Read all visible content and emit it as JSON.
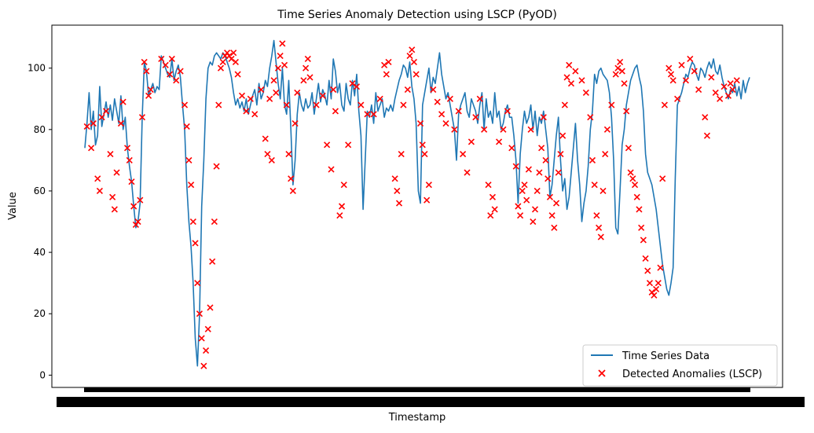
{
  "chart_data": {
    "type": "line",
    "title": "Time Series Anomaly Detection using LSCP (PyOD)",
    "xlabel": "Timestamp",
    "ylabel": "Value",
    "ylim": [
      -4,
      114
    ],
    "yticks": [
      0,
      20,
      40,
      60,
      80,
      100
    ],
    "grid": false,
    "legend_position": "lower-right",
    "colors": {
      "series": "#1f77b4",
      "anomalies": "#ff0000"
    },
    "series": [
      {
        "name": "Time Series Data",
        "values": [
          74,
          82,
          92,
          80,
          86,
          75,
          78,
          94,
          81,
          85,
          89,
          84,
          88,
          83,
          90,
          86,
          82,
          91,
          80,
          84,
          74,
          68,
          63,
          55,
          48,
          50,
          56,
          84,
          102,
          99,
          91,
          93,
          95,
          92,
          94,
          93,
          104,
          102,
          100,
          98,
          97,
          103,
          96,
          99,
          101,
          97,
          88,
          80,
          62,
          50,
          42,
          30,
          12,
          3,
          20,
          55,
          70,
          90,
          100,
          102,
          101,
          104,
          105,
          104,
          103,
          105,
          104,
          102,
          100,
          97,
          92,
          88,
          90,
          87,
          89,
          86,
          90,
          85,
          88,
          91,
          93,
          88,
          95,
          90,
          92,
          96,
          94,
          100,
          104,
          109,
          102,
          95,
          90,
          100,
          88,
          85,
          96,
          80,
          62,
          70,
          85,
          92,
          88,
          86,
          90,
          87,
          88,
          92,
          85,
          90,
          95,
          89,
          93,
          91,
          88,
          96,
          90,
          103,
          99,
          92,
          95,
          88,
          86,
          95,
          90,
          88,
          96,
          91,
          98,
          86,
          78,
          54,
          70,
          86,
          84,
          88,
          82,
          92,
          86,
          88,
          90,
          84,
          87,
          86,
          88,
          86,
          90,
          93,
          96,
          98,
          101,
          100,
          97,
          102,
          94,
          90,
          82,
          60,
          56,
          88,
          92,
          96,
          100,
          92,
          97,
          95,
          100,
          105,
          98,
          94,
          90,
          92,
          88,
          84,
          80,
          70,
          85,
          88,
          90,
          92,
          86,
          84,
          90,
          88,
          86,
          82,
          88,
          92,
          80,
          90,
          84,
          86,
          82,
          92,
          84,
          86,
          80,
          82,
          86,
          88,
          84,
          84,
          78,
          70,
          56,
          72,
          80,
          86,
          82,
          84,
          88,
          80,
          86,
          78,
          84,
          82,
          86,
          80,
          74,
          58,
          62,
          70,
          78,
          84,
          70,
          60,
          64,
          54,
          58,
          66,
          74,
          82,
          70,
          62,
          50,
          56,
          60,
          68,
          80,
          86,
          98,
          95,
          99,
          100,
          98,
          97,
          96,
          92,
          84,
          70,
          48,
          46,
          60,
          75,
          80,
          88,
          92,
          96,
          98,
          100,
          101,
          97,
          94,
          86,
          72,
          66,
          64,
          62,
          58,
          54,
          48,
          42,
          36,
          32,
          28,
          26,
          30,
          35,
          64,
          88,
          90,
          92,
          95,
          98,
          97,
          100,
          102,
          101,
          98,
          96,
          100,
          99,
          97,
          100,
          102,
          100,
          103,
          99,
          98,
          101,
          97,
          94,
          92,
          90,
          93,
          92,
          95,
          91,
          94,
          90,
          96,
          92,
          95,
          97
        ]
      }
    ],
    "anomalies": {
      "name": "Detected Anomalies (LSCP)",
      "points": [
        [
          1,
          81
        ],
        [
          3,
          74
        ],
        [
          4,
          82
        ],
        [
          6,
          64
        ],
        [
          7,
          60
        ],
        [
          8,
          84
        ],
        [
          10,
          86
        ],
        [
          12,
          72
        ],
        [
          13,
          58
        ],
        [
          14,
          54
        ],
        [
          15,
          66
        ],
        [
          17,
          82
        ],
        [
          18,
          89
        ],
        [
          20,
          74
        ],
        [
          21,
          70
        ],
        [
          22,
          63
        ],
        [
          23,
          55
        ],
        [
          24,
          49
        ],
        [
          25,
          50
        ],
        [
          26,
          57
        ],
        [
          27,
          84
        ],
        [
          28,
          102
        ],
        [
          29,
          99
        ],
        [
          30,
          91
        ],
        [
          31,
          93
        ],
        [
          36,
          103
        ],
        [
          38,
          101
        ],
        [
          40,
          98
        ],
        [
          41,
          103
        ],
        [
          43,
          96
        ],
        [
          45,
          99
        ],
        [
          47,
          88
        ],
        [
          48,
          81
        ],
        [
          49,
          70
        ],
        [
          50,
          62
        ],
        [
          51,
          50
        ],
        [
          52,
          43
        ],
        [
          53,
          30
        ],
        [
          54,
          20
        ],
        [
          55,
          12
        ],
        [
          56,
          3
        ],
        [
          57,
          8
        ],
        [
          58,
          15
        ],
        [
          59,
          22
        ],
        [
          60,
          37
        ],
        [
          61,
          50
        ],
        [
          62,
          68
        ],
        [
          63,
          88
        ],
        [
          64,
          100
        ],
        [
          65,
          102
        ],
        [
          66,
          104
        ],
        [
          67,
          105
        ],
        [
          68,
          104
        ],
        [
          69,
          103
        ],
        [
          70,
          105
        ],
        [
          71,
          102
        ],
        [
          72,
          98
        ],
        [
          74,
          91
        ],
        [
          76,
          86
        ],
        [
          78,
          90
        ],
        [
          80,
          85
        ],
        [
          83,
          93
        ],
        [
          85,
          77
        ],
        [
          86,
          72
        ],
        [
          87,
          90
        ],
        [
          88,
          70
        ],
        [
          89,
          96
        ],
        [
          90,
          92
        ],
        [
          91,
          100
        ],
        [
          92,
          104
        ],
        [
          93,
          108
        ],
        [
          94,
          101
        ],
        [
          95,
          88
        ],
        [
          96,
          72
        ],
        [
          97,
          64
        ],
        [
          98,
          60
        ],
        [
          99,
          82
        ],
        [
          100,
          92
        ],
        [
          103,
          96
        ],
        [
          104,
          100
        ],
        [
          105,
          103
        ],
        [
          106,
          97
        ],
        [
          109,
          88
        ],
        [
          112,
          91
        ],
        [
          114,
          75
        ],
        [
          116,
          67
        ],
        [
          117,
          93
        ],
        [
          118,
          86
        ],
        [
          120,
          52
        ],
        [
          121,
          55
        ],
        [
          122,
          62
        ],
        [
          124,
          75
        ],
        [
          126,
          95
        ],
        [
          128,
          94
        ],
        [
          130,
          88
        ],
        [
          133,
          85
        ],
        [
          136,
          85
        ],
        [
          139,
          90
        ],
        [
          141,
          101
        ],
        [
          142,
          98
        ],
        [
          143,
          102
        ],
        [
          146,
          64
        ],
        [
          147,
          60
        ],
        [
          148,
          56
        ],
        [
          149,
          72
        ],
        [
          150,
          88
        ],
        [
          152,
          93
        ],
        [
          153,
          104
        ],
        [
          154,
          106
        ],
        [
          155,
          102
        ],
        [
          156,
          98
        ],
        [
          158,
          82
        ],
        [
          159,
          75
        ],
        [
          160,
          72
        ],
        [
          161,
          57
        ],
        [
          162,
          62
        ],
        [
          164,
          93
        ],
        [
          166,
          89
        ],
        [
          168,
          85
        ],
        [
          170,
          82
        ],
        [
          172,
          90
        ],
        [
          174,
          80
        ],
        [
          176,
          86
        ],
        [
          178,
          72
        ],
        [
          180,
          66
        ],
        [
          182,
          76
        ],
        [
          184,
          84
        ],
        [
          186,
          90
        ],
        [
          188,
          80
        ],
        [
          190,
          62
        ],
        [
          191,
          52
        ],
        [
          192,
          58
        ],
        [
          193,
          54
        ],
        [
          195,
          76
        ],
        [
          197,
          80
        ],
        [
          199,
          86
        ],
        [
          201,
          74
        ],
        [
          203,
          68
        ],
        [
          204,
          55
        ],
        [
          205,
          52
        ],
        [
          206,
          60
        ],
        [
          207,
          62
        ],
        [
          208,
          57
        ],
        [
          209,
          67
        ],
        [
          210,
          80
        ],
        [
          211,
          50
        ],
        [
          212,
          54
        ],
        [
          213,
          60
        ],
        [
          214,
          66
        ],
        [
          215,
          74
        ],
        [
          216,
          84
        ],
        [
          217,
          70
        ],
        [
          218,
          64
        ],
        [
          219,
          58
        ],
        [
          220,
          52
        ],
        [
          221,
          48
        ],
        [
          222,
          56
        ],
        [
          223,
          66
        ],
        [
          224,
          72
        ],
        [
          225,
          78
        ],
        [
          226,
          88
        ],
        [
          227,
          97
        ],
        [
          228,
          101
        ],
        [
          229,
          95
        ],
        [
          231,
          99
        ],
        [
          234,
          96
        ],
        [
          236,
          92
        ],
        [
          238,
          84
        ],
        [
          239,
          70
        ],
        [
          240,
          62
        ],
        [
          241,
          52
        ],
        [
          242,
          48
        ],
        [
          243,
          45
        ],
        [
          244,
          60
        ],
        [
          245,
          72
        ],
        [
          246,
          80
        ],
        [
          248,
          88
        ],
        [
          250,
          98
        ],
        [
          251,
          100
        ],
        [
          252,
          102
        ],
        [
          253,
          99
        ],
        [
          254,
          95
        ],
        [
          255,
          86
        ],
        [
          256,
          74
        ],
        [
          257,
          66
        ],
        [
          258,
          64
        ],
        [
          259,
          62
        ],
        [
          260,
          58
        ],
        [
          261,
          54
        ],
        [
          262,
          48
        ],
        [
          263,
          44
        ],
        [
          264,
          38
        ],
        [
          265,
          34
        ],
        [
          266,
          30
        ],
        [
          267,
          27
        ],
        [
          268,
          26
        ],
        [
          269,
          28
        ],
        [
          270,
          30
        ],
        [
          271,
          35
        ],
        [
          272,
          64
        ],
        [
          273,
          88
        ],
        [
          275,
          100
        ],
        [
          276,
          98
        ],
        [
          277,
          96
        ],
        [
          279,
          90
        ],
        [
          281,
          101
        ],
        [
          283,
          96
        ],
        [
          285,
          103
        ],
        [
          287,
          99
        ],
        [
          289,
          93
        ],
        [
          292,
          84
        ],
        [
          293,
          78
        ],
        [
          295,
          97
        ],
        [
          297,
          92
        ],
        [
          299,
          90
        ],
        [
          301,
          94
        ],
        [
          303,
          91
        ],
        [
          304,
          95
        ],
        [
          305,
          93
        ],
        [
          307,
          96
        ]
      ]
    },
    "xtick_count": 55
  }
}
